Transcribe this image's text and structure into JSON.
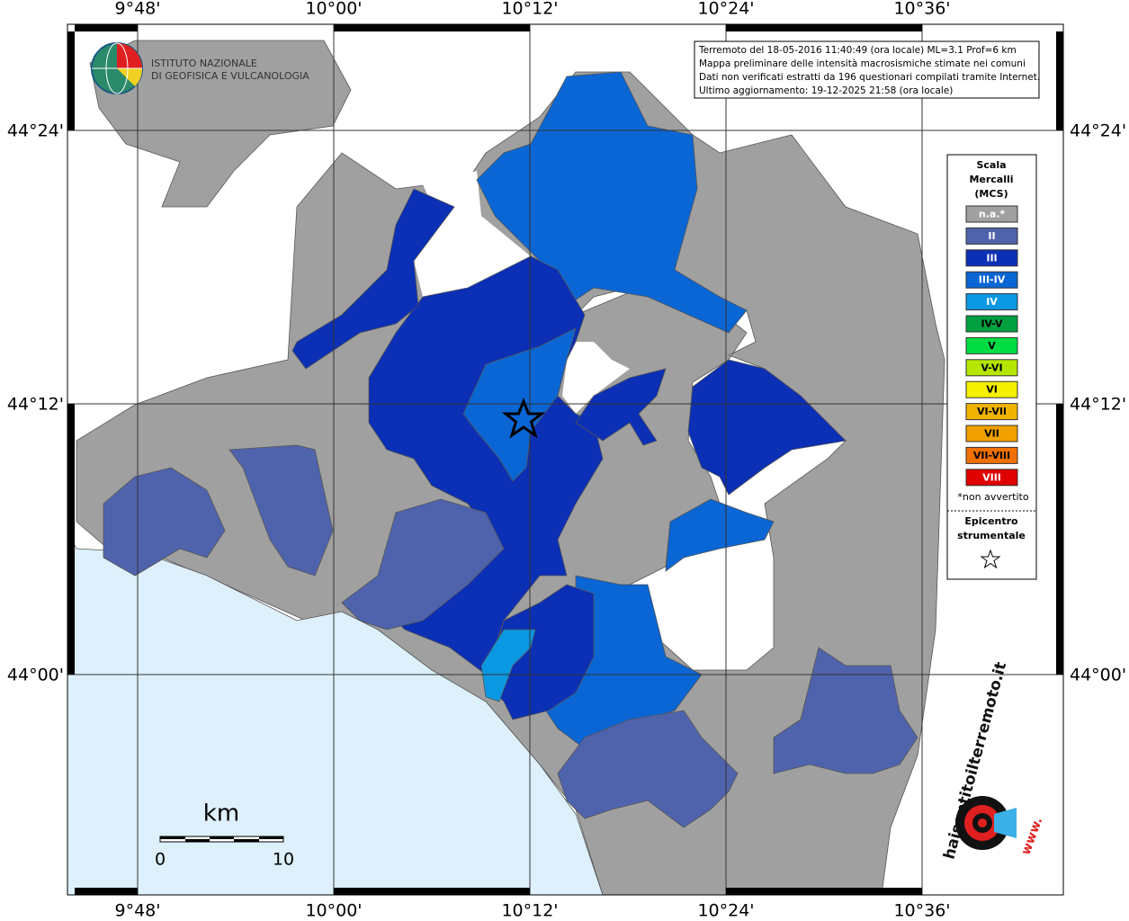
{
  "grid": {
    "lon_labels": [
      "9°48'",
      "10°00'",
      "10°12'",
      "10°24'",
      "10°36'"
    ],
    "lat_labels": [
      "44°24'",
      "44°12'",
      "44°00'"
    ]
  },
  "logo": {
    "line1": "ISTITUTO NAZIONALE",
    "line2": "DI GEOFISICA E VULCANOLOGIA"
  },
  "info": [
    "Terremoto del 18-05-2016 11:40:49 (ora locale) ML=3.1 Prof=6 km",
    "Mappa preliminare delle intensità macrosismiche stimate nei comuni",
    "Dati non verificati estratti da 196 questionari compilati tramite Internet.",
    "Ultimo aggiornamento: 19-12-2025 21:58 (ora locale)"
  ],
  "legend": {
    "title": [
      "Scala",
      "Mercalli",
      "(MCS)"
    ],
    "items": [
      {
        "label": "n.a.*",
        "color": "#a0a0a0"
      },
      {
        "label": "II",
        "color": "#4f63ad"
      },
      {
        "label": "III",
        "color": "#0b2fb5"
      },
      {
        "label": "III-IV",
        "color": "#0a66d4"
      },
      {
        "label": "IV",
        "color": "#0a98e2"
      },
      {
        "label": "IV-V",
        "color": "#00a040"
      },
      {
        "label": "V",
        "color": "#00dd44"
      },
      {
        "label": "V-VI",
        "color": "#b4e600"
      },
      {
        "label": "VI",
        "color": "#f5f000"
      },
      {
        "label": "VI-VII",
        "color": "#f0b400"
      },
      {
        "label": "VII",
        "color": "#f0a000"
      },
      {
        "label": "VII-VIII",
        "color": "#f07000"
      },
      {
        "label": "VIII",
        "color": "#e00000"
      }
    ],
    "note": "*non avvertito",
    "epicenter": [
      "Epicentro",
      "strumentale"
    ]
  },
  "scale_bar": {
    "unit": "km",
    "start": "0",
    "end": "10"
  },
  "site_logo": {
    "prefix": "www.",
    "name": "haisentitoilterremoto.it"
  }
}
